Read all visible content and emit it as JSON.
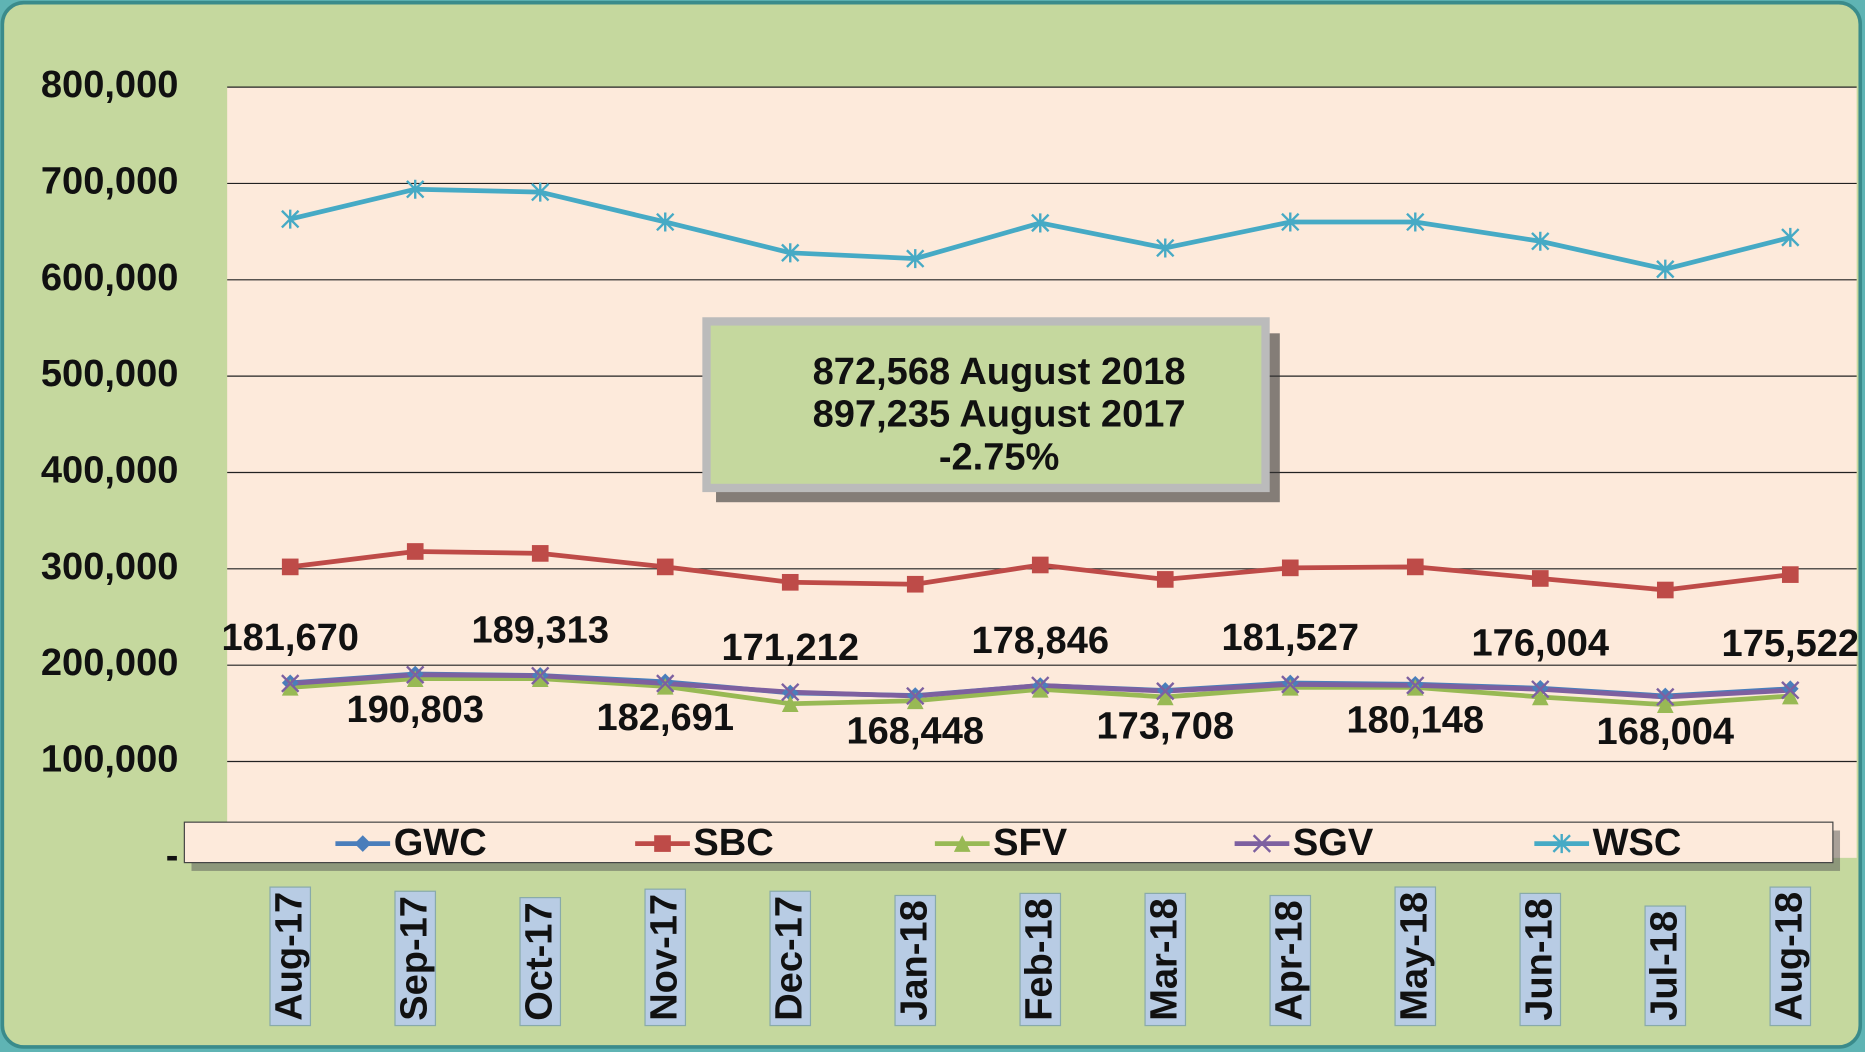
{
  "chart_data": {
    "type": "line",
    "categories": [
      "Aug-17",
      "Sep-17",
      "Oct-17",
      "Nov-17",
      "Dec-17",
      "Jan-18",
      "Feb-18",
      "Mar-18",
      "Apr-18",
      "May-18",
      "Jun-18",
      "Jul-18",
      "Aug-18"
    ],
    "series": [
      {
        "name": "GWC",
        "color": "#4a7ebb",
        "values": [
          181670,
          190803,
          189313,
          182691,
          171212,
          168448,
          178846,
          173708,
          181527,
          180148,
          176004,
          168004,
          175522
        ],
        "value_labels": [
          "181,670",
          "190,803",
          "189,313",
          "182,691",
          "171,212",
          "168,448",
          "178,846",
          "173,708",
          "181,527",
          "180,148",
          "176,004",
          "168,004",
          "175,522"
        ]
      },
      {
        "name": "SBC",
        "color": "#be4b48",
        "values": [
          302000,
          318000,
          316000,
          302000,
          286000,
          284000,
          304000,
          289000,
          301000,
          302000,
          290000,
          278000,
          294000
        ]
      },
      {
        "name": "SFV",
        "color": "#98b954",
        "values": [
          177000,
          186000,
          186000,
          178000,
          160000,
          163000,
          175000,
          167000,
          177000,
          177000,
          167000,
          159000,
          168000
        ]
      },
      {
        "name": "SGV",
        "color": "#7d60a0",
        "values": [
          181000,
          190000,
          189000,
          181000,
          172000,
          168000,
          179000,
          173000,
          180000,
          179000,
          175000,
          167000,
          174000
        ]
      },
      {
        "name": "WSC",
        "color": "#46aac5",
        "values": [
          663000,
          694000,
          691000,
          660000,
          628000,
          622000,
          659000,
          633000,
          660000,
          660000,
          640000,
          611000,
          644000
        ]
      }
    ],
    "annotations": [
      "872,568 August 2018",
      "897,235 August 2017",
      "-2.75%"
    ],
    "ylim": [
      0,
      800000
    ],
    "yticks": [
      {
        "value": 0,
        "label": "-"
      },
      {
        "value": 100000,
        "label": "100,000"
      },
      {
        "value": 200000,
        "label": "200,000"
      },
      {
        "value": 300000,
        "label": "300,000"
      },
      {
        "value": 400000,
        "label": "400,000"
      },
      {
        "value": 500000,
        "label": "500,000"
      },
      {
        "value": 600000,
        "label": "600,000"
      },
      {
        "value": 700000,
        "label": "700,000"
      },
      {
        "value": 800000,
        "label": "800,000"
      }
    ],
    "grid": true,
    "legend": "bottom"
  }
}
